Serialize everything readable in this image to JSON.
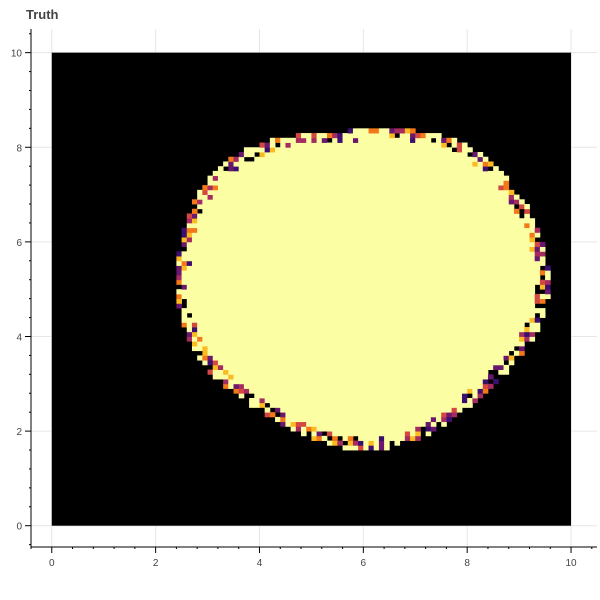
{
  "chart_data": {
    "type": "heatmap",
    "title": "Truth",
    "xlabel": "",
    "ylabel": "",
    "xlim": [
      -0.4,
      10.5
    ],
    "ylim": [
      -0.45,
      10.5
    ],
    "image_extent": {
      "x": [
        0,
        10
      ],
      "y": [
        0,
        10
      ]
    },
    "grid": true,
    "colormap": "inferno",
    "x_ticks": [
      "0",
      "2",
      "4",
      "6",
      "8",
      "10"
    ],
    "y_ticks": [
      "0",
      "2",
      "4",
      "6",
      "8",
      "10"
    ],
    "background_value": 0,
    "blob": {
      "value": 1,
      "center": [
        5.95,
        5.15
      ],
      "radii": [
        3.45,
        3.25
      ],
      "edge_noise": 0.05
    },
    "colors": {
      "background": "#000000",
      "blob": "#fcfea4",
      "edge_palette": [
        "#3b0f70",
        "#6a176e",
        "#a52c60",
        "#d44842",
        "#f37819",
        "#fbba1f"
      ]
    }
  }
}
